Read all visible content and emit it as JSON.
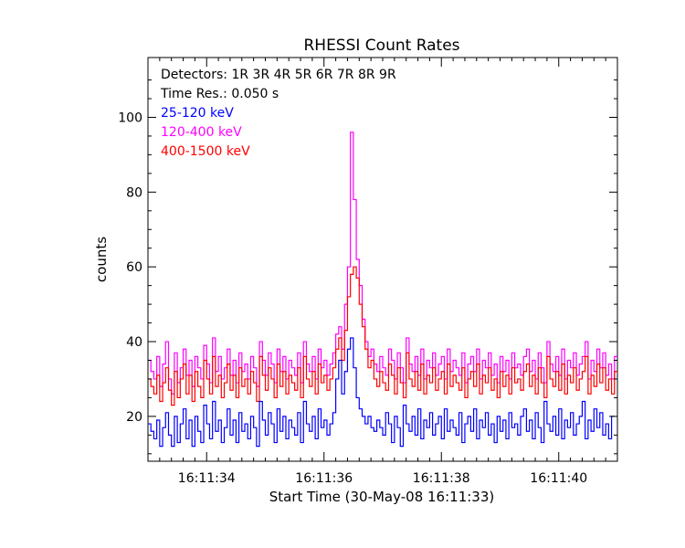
{
  "chart_data": {
    "type": "line",
    "title": "RHESSI Count Rates",
    "xlabel": "Start Time (30-May-08 16:11:33)",
    "ylabel": "counts",
    "xlim": [
      0.0,
      8.0
    ],
    "ylim": [
      8,
      116
    ],
    "x_ticks": [
      {
        "value": 1.0,
        "label": "16:11:34"
      },
      {
        "value": 3.0,
        "label": "16:11:36"
      },
      {
        "value": 5.0,
        "label": "16:11:38"
      },
      {
        "value": 7.0,
        "label": "16:11:40"
      }
    ],
    "y_ticks": [
      {
        "value": 20,
        "label": "20"
      },
      {
        "value": 40,
        "label": "40"
      },
      {
        "value": 60,
        "label": "60"
      },
      {
        "value": 80,
        "label": "80"
      },
      {
        "value": 100,
        "label": "100"
      }
    ],
    "step_seconds": 0.05,
    "annotations": [
      {
        "text": "Detectors:  1R 3R 4R 5R 6R 7R 8R 9R",
        "color": "#000000"
      },
      {
        "text": "Time Res.: 0.050 s",
        "color": "#000000"
      },
      {
        "text": "25-120 keV",
        "color": "#0000ff"
      },
      {
        "text": "120-400 keV",
        "color": "#ff00ff"
      },
      {
        "text": "400-1500 keV",
        "color": "#ff0000"
      }
    ],
    "grid": false,
    "series": [
      {
        "name": "120-400 keV",
        "color": "#ff00ff",
        "values": [
          35,
          32,
          30,
          36,
          28,
          34,
          40,
          30,
          26,
          37,
          29,
          33,
          38,
          31,
          35,
          28,
          36,
          33,
          30,
          39,
          34,
          29,
          41,
          32,
          36,
          30,
          33,
          38,
          31,
          35,
          29,
          37,
          32,
          34,
          30,
          36,
          33,
          28,
          40,
          35,
          31,
          37,
          34,
          29,
          38,
          32,
          36,
          30,
          35,
          33,
          31,
          37,
          29,
          40,
          34,
          32,
          36,
          30,
          38,
          33,
          35,
          31,
          34,
          37,
          42,
          44,
          38,
          50,
          60,
          96,
          78,
          62,
          55,
          46,
          40,
          36,
          38,
          34,
          32,
          36,
          33,
          31,
          38,
          35,
          30,
          37,
          33,
          29,
          41,
          34,
          32,
          36,
          31,
          38,
          30,
          35,
          33,
          37,
          31,
          34,
          36,
          30,
          38,
          32,
          35,
          33,
          31,
          37,
          29,
          34,
          36,
          32,
          38,
          30,
          35,
          33,
          37,
          31,
          34,
          29,
          36,
          32,
          35,
          30,
          37,
          33,
          34,
          31,
          36,
          38,
          32,
          35,
          30,
          37,
          33,
          29,
          40,
          34,
          32,
          36,
          31,
          38,
          30,
          35,
          33,
          37,
          31,
          34,
          36,
          40,
          30,
          35,
          32,
          38,
          33,
          37,
          31,
          34,
          30,
          36
        ]
      },
      {
        "name": "400-1500 keV",
        "color": "#ff0000",
        "values": [
          30,
          28,
          26,
          31,
          24,
          29,
          33,
          27,
          23,
          32,
          25,
          30,
          34,
          26,
          31,
          24,
          32,
          28,
          25,
          35,
          30,
          26,
          36,
          28,
          31,
          25,
          29,
          34,
          27,
          31,
          25,
          33,
          28,
          30,
          26,
          32,
          29,
          24,
          36,
          31,
          27,
          33,
          30,
          25,
          34,
          28,
          32,
          26,
          31,
          29,
          27,
          33,
          25,
          36,
          30,
          28,
          32,
          26,
          34,
          29,
          31,
          27,
          30,
          33,
          38,
          41,
          35,
          43,
          52,
          58,
          60,
          57,
          50,
          44,
          38,
          33,
          35,
          30,
          28,
          32,
          29,
          27,
          34,
          31,
          26,
          33,
          29,
          25,
          37,
          30,
          28,
          32,
          27,
          34,
          26,
          31,
          29,
          33,
          27,
          30,
          32,
          26,
          34,
          28,
          31,
          29,
          27,
          33,
          25,
          30,
          32,
          28,
          34,
          26,
          31,
          29,
          33,
          27,
          30,
          25,
          32,
          28,
          31,
          26,
          33,
          29,
          30,
          27,
          32,
          34,
          28,
          31,
          26,
          33,
          29,
          25,
          36,
          30,
          28,
          32,
          27,
          34,
          26,
          31,
          29,
          33,
          27,
          30,
          32,
          36,
          26,
          31,
          28,
          34,
          29,
          33,
          27,
          30,
          26,
          32
        ]
      },
      {
        "name": "25-120 keV",
        "color": "#0000ff",
        "values": [
          18,
          16,
          14,
          19,
          12,
          17,
          21,
          15,
          12,
          20,
          13,
          18,
          22,
          14,
          19,
          12,
          20,
          16,
          13,
          23,
          18,
          14,
          24,
          16,
          19,
          13,
          17,
          22,
          15,
          19,
          13,
          21,
          16,
          18,
          14,
          20,
          17,
          12,
          24,
          19,
          15,
          21,
          18,
          13,
          22,
          16,
          20,
          14,
          19,
          17,
          15,
          21,
          13,
          24,
          18,
          16,
          20,
          14,
          22,
          17,
          19,
          15,
          18,
          21,
          30,
          35,
          26,
          32,
          38,
          41,
          33,
          25,
          22,
          20,
          18,
          20,
          17,
          16,
          19,
          17,
          15,
          21,
          18,
          13,
          20,
          17,
          12,
          23,
          18,
          16,
          20,
          15,
          22,
          14,
          19,
          17,
          21,
          15,
          18,
          20,
          14,
          22,
          16,
          19,
          17,
          15,
          21,
          13,
          18,
          20,
          16,
          22,
          14,
          19,
          17,
          21,
          15,
          18,
          13,
          20,
          16,
          19,
          14,
          21,
          17,
          18,
          15,
          20,
          22,
          16,
          19,
          14,
          21,
          17,
          13,
          24,
          18,
          16,
          20,
          15,
          22,
          14,
          19,
          17,
          21,
          15,
          18,
          20,
          24,
          14,
          19,
          16,
          22,
          17,
          21,
          15,
          18,
          14,
          20
        ]
      }
    ]
  }
}
